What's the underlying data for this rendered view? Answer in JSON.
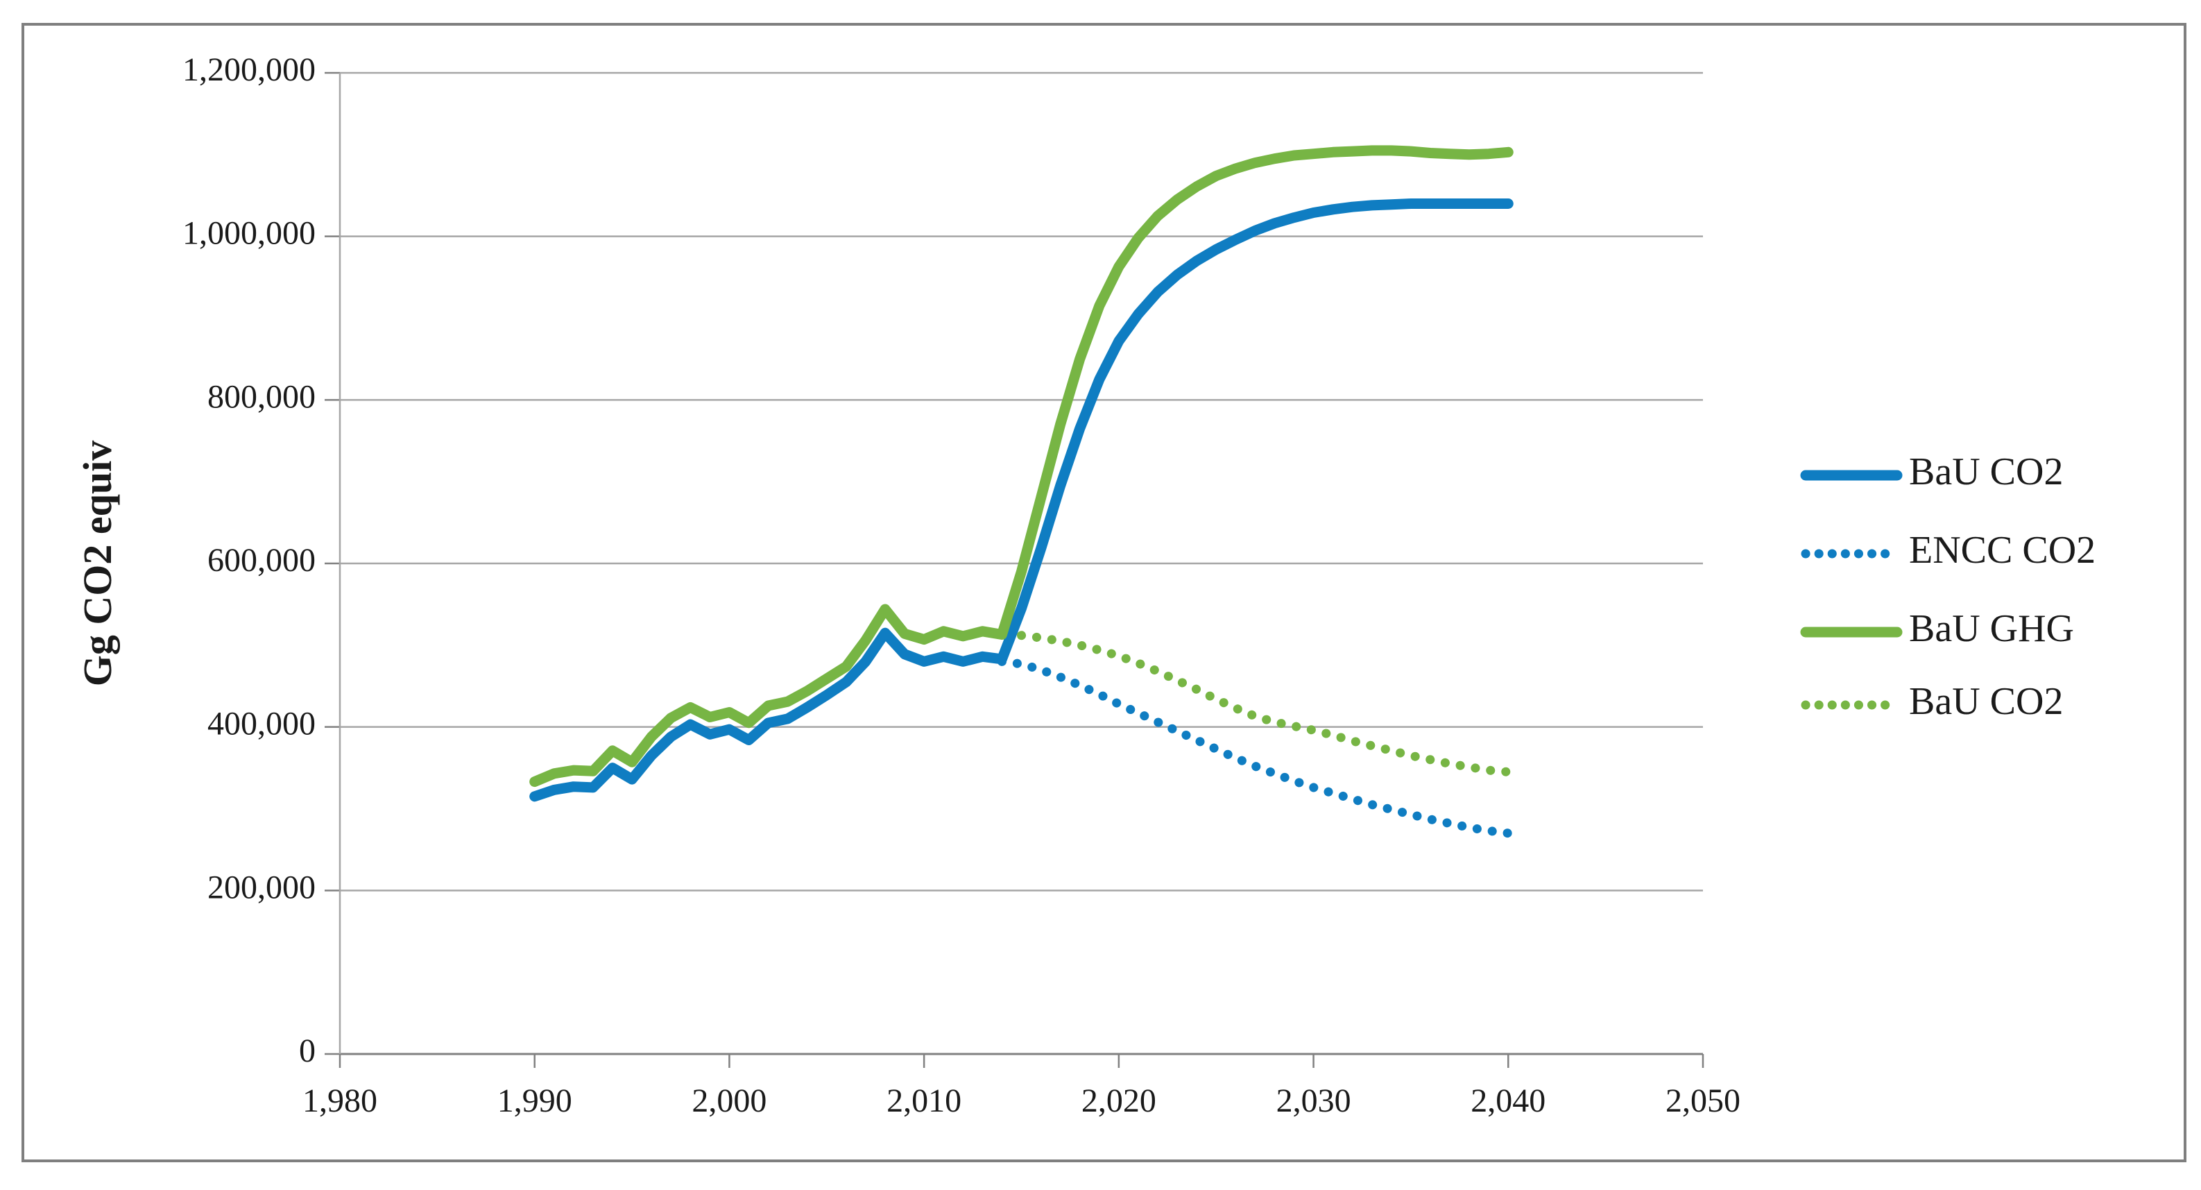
{
  "figure": {
    "y_axis_title": "Gg CO2 equiv",
    "colors": {
      "blue": "#0f7dc2",
      "green": "#77b544",
      "gridline": "#a6a6a6",
      "axis": "#808080",
      "border": "#7f7f7f",
      "text": "#1a1a1a",
      "background": "#ffffff"
    }
  },
  "chart_data": {
    "type": "line",
    "title": "",
    "xlabel": "",
    "ylabel": "Gg CO2 equiv",
    "xlim": [
      1980,
      2050
    ],
    "ylim": [
      0,
      1200000
    ],
    "grid": "horizontal",
    "legend_position": "right-outside",
    "x_ticks": {
      "values": [
        1980,
        1990,
        2000,
        2010,
        2020,
        2030,
        2040,
        2050
      ],
      "labels": [
        "1,980",
        "1,990",
        "2,000",
        "2,010",
        "2,020",
        "2,030",
        "2,040",
        "2,050"
      ]
    },
    "y_ticks": {
      "values": [
        0,
        200000,
        400000,
        600000,
        800000,
        1000000,
        1200000
      ],
      "labels": [
        "0",
        "200,000",
        "400,000",
        "600,000",
        "800,000",
        "1,000,000",
        "1,200,000"
      ]
    },
    "series": [
      {
        "name": "BaU CO2",
        "color": "#0f7dc2",
        "style": "solid",
        "points": [
          [
            1990,
            315000
          ],
          [
            1991,
            323000
          ],
          [
            1992,
            327000
          ],
          [
            1993,
            326000
          ],
          [
            1994,
            350000
          ],
          [
            1995,
            336000
          ],
          [
            1996,
            365000
          ],
          [
            1997,
            388000
          ],
          [
            1998,
            403000
          ],
          [
            1999,
            391000
          ],
          [
            2000,
            397000
          ],
          [
            2001,
            384000
          ],
          [
            2002,
            405000
          ],
          [
            2003,
            410000
          ],
          [
            2004,
            424000
          ],
          [
            2005,
            439000
          ],
          [
            2006,
            455000
          ],
          [
            2007,
            480000
          ],
          [
            2008,
            515000
          ],
          [
            2009,
            489000
          ],
          [
            2010,
            480000
          ],
          [
            2011,
            486000
          ],
          [
            2012,
            480000
          ],
          [
            2013,
            486000
          ],
          [
            2014,
            483000
          ],
          [
            2015,
            545000
          ],
          [
            2016,
            618000
          ],
          [
            2017,
            695000
          ],
          [
            2018,
            765000
          ],
          [
            2019,
            825000
          ],
          [
            2020,
            872000
          ],
          [
            2021,
            905000
          ],
          [
            2022,
            932000
          ],
          [
            2023,
            953000
          ],
          [
            2024,
            970000
          ],
          [
            2025,
            984000
          ],
          [
            2026,
            996000
          ],
          [
            2027,
            1007000
          ],
          [
            2028,
            1016000
          ],
          [
            2029,
            1023000
          ],
          [
            2030,
            1029000
          ],
          [
            2031,
            1033000
          ],
          [
            2032,
            1036000
          ],
          [
            2033,
            1038000
          ],
          [
            2034,
            1039000
          ],
          [
            2035,
            1040000
          ],
          [
            2036,
            1040000
          ],
          [
            2037,
            1040000
          ],
          [
            2038,
            1040000
          ],
          [
            2039,
            1040000
          ],
          [
            2040,
            1040000
          ]
        ]
      },
      {
        "name": "ENCC CO2",
        "color": "#0f7dc2",
        "style": "dotted",
        "points": [
          [
            2014,
            480000
          ],
          [
            2015,
            477000
          ],
          [
            2016,
            470000
          ],
          [
            2017,
            461000
          ],
          [
            2018,
            451000
          ],
          [
            2019,
            440000
          ],
          [
            2020,
            428000
          ],
          [
            2021,
            417000
          ],
          [
            2022,
            406000
          ],
          [
            2023,
            395000
          ],
          [
            2024,
            384000
          ],
          [
            2025,
            373000
          ],
          [
            2026,
            362000
          ],
          [
            2027,
            352000
          ],
          [
            2028,
            343000
          ],
          [
            2029,
            334000
          ],
          [
            2030,
            326000
          ],
          [
            2031,
            319000
          ],
          [
            2032,
            312000
          ],
          [
            2033,
            305000
          ],
          [
            2034,
            299000
          ],
          [
            2035,
            293000
          ],
          [
            2036,
            287000
          ],
          [
            2037,
            282000
          ],
          [
            2038,
            277000
          ],
          [
            2039,
            273000
          ],
          [
            2040,
            270000
          ]
        ]
      },
      {
        "name": "BaU GHG",
        "color": "#77b544",
        "style": "solid",
        "points": [
          [
            1990,
            333000
          ],
          [
            1991,
            343000
          ],
          [
            1992,
            347000
          ],
          [
            1993,
            346000
          ],
          [
            1994,
            371000
          ],
          [
            1995,
            357000
          ],
          [
            1996,
            388000
          ],
          [
            1997,
            411000
          ],
          [
            1998,
            424000
          ],
          [
            1999,
            412000
          ],
          [
            2000,
            418000
          ],
          [
            2001,
            405000
          ],
          [
            2002,
            426000
          ],
          [
            2003,
            431000
          ],
          [
            2004,
            444000
          ],
          [
            2005,
            459000
          ],
          [
            2006,
            474000
          ],
          [
            2007,
            506000
          ],
          [
            2008,
            544000
          ],
          [
            2009,
            514000
          ],
          [
            2010,
            507000
          ],
          [
            2011,
            517000
          ],
          [
            2012,
            511000
          ],
          [
            2013,
            517000
          ],
          [
            2014,
            513000
          ],
          [
            2015,
            590000
          ],
          [
            2016,
            680000
          ],
          [
            2017,
            770000
          ],
          [
            2018,
            850000
          ],
          [
            2019,
            915000
          ],
          [
            2020,
            963000
          ],
          [
            2021,
            998000
          ],
          [
            2022,
            1025000
          ],
          [
            2023,
            1045000
          ],
          [
            2024,
            1061000
          ],
          [
            2025,
            1074000
          ],
          [
            2026,
            1083000
          ],
          [
            2027,
            1090000
          ],
          [
            2028,
            1095000
          ],
          [
            2029,
            1099000
          ],
          [
            2030,
            1101000
          ],
          [
            2031,
            1103000
          ],
          [
            2032,
            1104000
          ],
          [
            2033,
            1105000
          ],
          [
            2034,
            1105000
          ],
          [
            2035,
            1104000
          ],
          [
            2036,
            1102000
          ],
          [
            2037,
            1101000
          ],
          [
            2038,
            1100000
          ],
          [
            2039,
            1101000
          ],
          [
            2040,
            1103000
          ]
        ]
      },
      {
        "name": "BaU CO2",
        "color": "#77b544",
        "style": "dotted",
        "points": [
          [
            2015,
            512000
          ],
          [
            2016,
            509000
          ],
          [
            2017,
            505000
          ],
          [
            2018,
            500000
          ],
          [
            2019,
            494000
          ],
          [
            2020,
            487000
          ],
          [
            2021,
            478000
          ],
          [
            2022,
            468000
          ],
          [
            2023,
            457000
          ],
          [
            2024,
            446000
          ],
          [
            2025,
            434000
          ],
          [
            2026,
            423000
          ],
          [
            2027,
            413000
          ],
          [
            2028,
            406000
          ],
          [
            2029,
            401000
          ],
          [
            2030,
            396000
          ],
          [
            2031,
            390000
          ],
          [
            2032,
            383000
          ],
          [
            2033,
            377000
          ],
          [
            2034,
            371000
          ],
          [
            2035,
            365000
          ],
          [
            2036,
            360000
          ],
          [
            2037,
            355000
          ],
          [
            2038,
            351000
          ],
          [
            2039,
            347000
          ],
          [
            2040,
            345000
          ]
        ]
      }
    ],
    "legend": [
      "BaU CO2",
      "ENCC CO2",
      "BaU GHG",
      "BaU CO2"
    ]
  }
}
